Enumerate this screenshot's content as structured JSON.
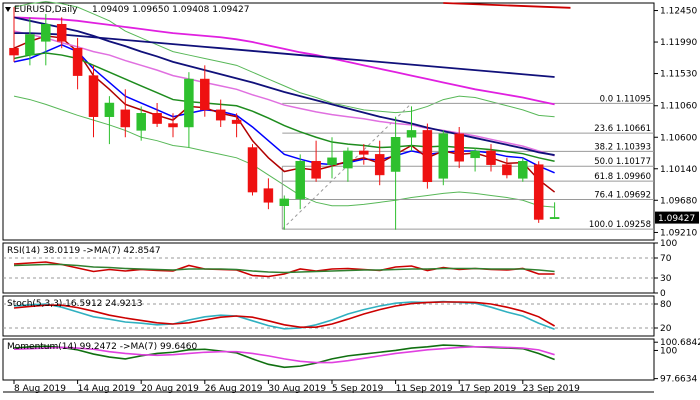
{
  "header": {
    "symbol": "EURUSD,Daily",
    "ohlc": "1.09409 1.09650 1.09408 1.09427"
  },
  "colors": {
    "bull": "#2ec02e",
    "bear": "#ee1111",
    "ma_fast": "#0000ff",
    "ma_red": "#b00000",
    "ma_green": "#1e8c1e",
    "ma_violet": "#e070e0",
    "ma_magenta": "#e020e0",
    "ma_navy": "#10107a",
    "ma_top": "#cc0000",
    "env": "#58b858",
    "fib": "#9a9a9a",
    "rsi": "#cc0000",
    "rsi_ma": "#308030",
    "stoch_k": "#30b0c0",
    "stoch_d": "#cc0000",
    "mom": "#107010",
    "mom_ma": "#e040e0",
    "price_box": "#000000"
  },
  "chart_data": [
    {
      "type": "candlestick",
      "symbol": "EURUSD,Daily",
      "ylim": [
        1.091,
        1.1256
      ],
      "y_ticks": [
        "1.12450",
        "1.11990",
        "1.11530",
        "1.11060",
        "1.10600",
        "1.10140",
        "1.09680",
        "1.09210"
      ],
      "current_price": "1.09427",
      "x_labels": [
        "8 Aug 2019",
        "14 Aug 2019",
        "20 Aug 2019",
        "26 Aug 2019",
        "30 Aug 2019",
        "5 Sep 2019",
        "11 Sep 2019",
        "17 Sep 2019",
        "23 Sep 2019"
      ],
      "candles": [
        {
          "o": 1.119,
          "h": 1.125,
          "l": 1.117,
          "c": 1.118
        },
        {
          "o": 1.118,
          "h": 1.1235,
          "l": 1.1165,
          "c": 1.121
        },
        {
          "o": 1.12,
          "h": 1.124,
          "l": 1.1165,
          "c": 1.1225
        },
        {
          "o": 1.1225,
          "h": 1.1235,
          "l": 1.119,
          "c": 1.12
        },
        {
          "o": 1.119,
          "h": 1.1205,
          "l": 1.113,
          "c": 1.115
        },
        {
          "o": 1.115,
          "h": 1.1165,
          "l": 1.106,
          "c": 1.109
        },
        {
          "o": 1.109,
          "h": 1.112,
          "l": 1.105,
          "c": 1.111
        },
        {
          "o": 1.11,
          "h": 1.113,
          "l": 1.106,
          "c": 1.1075
        },
        {
          "o": 1.107,
          "h": 1.1105,
          "l": 1.1055,
          "c": 1.1095
        },
        {
          "o": 1.1095,
          "h": 1.111,
          "l": 1.1075,
          "c": 1.108
        },
        {
          "o": 1.108,
          "h": 1.1095,
          "l": 1.106,
          "c": 1.1075
        },
        {
          "o": 1.1075,
          "h": 1.1155,
          "l": 1.1045,
          "c": 1.1145
        },
        {
          "o": 1.1145,
          "h": 1.1165,
          "l": 1.109,
          "c": 1.11
        },
        {
          "o": 1.11,
          "h": 1.1115,
          "l": 1.1075,
          "c": 1.1085
        },
        {
          "o": 1.1085,
          "h": 1.1095,
          "l": 1.106,
          "c": 1.108
        },
        {
          "o": 1.1045,
          "h": 1.105,
          "l": 1.0975,
          "c": 1.098
        },
        {
          "o": 1.0985,
          "h": 1.1,
          "l": 1.0955,
          "c": 1.0965
        },
        {
          "o": 1.096,
          "h": 1.0975,
          "l": 1.0925,
          "c": 1.097
        },
        {
          "o": 1.097,
          "h": 1.1035,
          "l": 1.0955,
          "c": 1.1025
        },
        {
          "o": 1.1025,
          "h": 1.1055,
          "l": 1.0995,
          "c": 1.1
        },
        {
          "o": 1.102,
          "h": 1.106,
          "l": 1.1,
          "c": 1.103
        },
        {
          "o": 1.1015,
          "h": 1.1045,
          "l": 1.0995,
          "c": 1.104
        },
        {
          "o": 1.104,
          "h": 1.105,
          "l": 1.102,
          "c": 1.1035
        },
        {
          "o": 1.1035,
          "h": 1.1055,
          "l": 1.099,
          "c": 1.1005
        },
        {
          "o": 1.101,
          "h": 1.109,
          "l": 1.0925,
          "c": 1.106
        },
        {
          "o": 1.106,
          "h": 1.1105,
          "l": 1.104,
          "c": 1.107
        },
        {
          "o": 1.107,
          "h": 1.108,
          "l": 1.0985,
          "c": 1.0995
        },
        {
          "o": 1.1,
          "h": 1.107,
          "l": 1.099,
          "c": 1.1065
        },
        {
          "o": 1.1065,
          "h": 1.1075,
          "l": 1.1015,
          "c": 1.1025
        },
        {
          "o": 1.103,
          "h": 1.1045,
          "l": 1.101,
          "c": 1.104
        },
        {
          "o": 1.104,
          "h": 1.105,
          "l": 1.101,
          "c": 1.102
        },
        {
          "o": 1.102,
          "h": 1.103,
          "l": 1.1,
          "c": 1.1005
        },
        {
          "o": 1.1,
          "h": 1.103,
          "l": 1.0995,
          "c": 1.1025
        },
        {
          "o": 1.102,
          "h": 1.1025,
          "l": 1.0935,
          "c": 1.094
        },
        {
          "o": 1.0941,
          "h": 1.0965,
          "l": 1.0941,
          "c": 1.0943
        }
      ],
      "fib_levels": [
        {
          "label": "0.0 1.11095",
          "value": 1.11095
        },
        {
          "label": "23.6 1.10661",
          "value": 1.10661
        },
        {
          "label": "38.2 1.10393",
          "value": 1.10393
        },
        {
          "label": "50.0 1.10177",
          "value": 1.10177
        },
        {
          "label": "61.8 1.09960",
          "value": 1.0996
        },
        {
          "label": "76.4 1.09692",
          "value": 1.09692
        },
        {
          "label": "100.0 1.09258",
          "value": 1.09258
        }
      ],
      "moving_averages": [
        {
          "color_key": "ma_fast",
          "values": [
            1.117,
            1.1175,
            1.1185,
            1.1195,
            1.1185,
            1.116,
            1.114,
            1.112,
            1.111,
            1.11,
            1.109,
            1.1095,
            1.11,
            1.1098,
            1.1092,
            1.1075,
            1.1055,
            1.1035,
            1.1028,
            1.1022,
            1.102,
            1.1023,
            1.1028,
            1.1027,
            1.1033,
            1.104,
            1.1035,
            1.1038,
            1.104,
            1.104,
            1.1037,
            1.1032,
            1.103,
            1.1018,
            1.1008
          ]
        },
        {
          "color_key": "ma_red",
          "values": [
            1.119,
            1.12,
            1.1208,
            1.1205,
            1.1185,
            1.115,
            1.113,
            1.1108,
            1.11,
            1.1092,
            1.1085,
            1.1105,
            1.1103,
            1.1095,
            1.109,
            1.1055,
            1.103,
            1.101,
            1.1015,
            1.1012,
            1.1018,
            1.1025,
            1.103,
            1.1022,
            1.1035,
            1.1048,
            1.103,
            1.104,
            1.1035,
            1.1037,
            1.103,
            1.1022,
            1.1023,
            1.0998,
            1.098
          ]
        },
        {
          "color_key": "ma_green",
          "values": [
            1.1175,
            1.118,
            1.1183,
            1.118,
            1.1175,
            1.1165,
            1.1155,
            1.1145,
            1.1135,
            1.1125,
            1.1115,
            1.1112,
            1.111,
            1.1108,
            1.1106,
            1.1098,
            1.1088,
            1.1077,
            1.1068,
            1.106,
            1.1053,
            1.105,
            1.1048,
            1.1045,
            1.1046,
            1.1048,
            1.1046,
            1.1047,
            1.1045,
            1.1044,
            1.1042,
            1.1039,
            1.1036,
            1.103,
            1.1025
          ]
        },
        {
          "color_key": "ma_violet",
          "values": [
            1.1215,
            1.121,
            1.1205,
            1.1198,
            1.1192,
            1.1185,
            1.118,
            1.1172,
            1.1165,
            1.1158,
            1.115,
            1.1145,
            1.114,
            1.1135,
            1.113,
            1.1122,
            1.1115,
            1.1107,
            1.1102,
            1.1097,
            1.1093,
            1.109,
            1.1087,
            1.1083,
            1.108,
            1.1078,
            1.1073,
            1.107,
            1.1066,
            1.1062,
            1.1057,
            1.1052,
            1.1047,
            1.104,
            1.1033
          ]
        },
        {
          "color_key": "ma_magenta",
          "values": [
            1.1235,
            1.1234,
            1.1233,
            1.1232,
            1.123,
            1.1227,
            1.1224,
            1.1221,
            1.1218,
            1.1215,
            1.1212,
            1.121,
            1.1208,
            1.1206,
            1.1203,
            1.1199,
            1.1194,
            1.1189,
            1.1184,
            1.118,
            1.1175,
            1.117,
            1.1165,
            1.116,
            1.1155,
            1.115,
            1.1145,
            1.114,
            1.1135,
            1.113,
            1.1126,
            1.1122,
            1.1118,
            1.1113,
            1.1108
          ]
        },
        {
          "color_key": "ma_navy",
          "values": [
            1.1235,
            1.123,
            1.1225,
            1.122,
            1.1215,
            1.1208,
            1.12,
            1.1193,
            1.1185,
            1.1178,
            1.117,
            1.1164,
            1.1158,
            1.1152,
            1.1146,
            1.114,
            1.1133,
            1.1126,
            1.112,
            1.1114,
            1.1108,
            1.1102,
            1.1096,
            1.109,
            1.1085,
            1.108,
            1.1074,
            1.1069,
            1.1064,
            1.1059,
            1.1054,
            1.1049,
            1.1044,
            1.1038,
            1.1034
          ]
        },
        {
          "color_key": "ma_navy",
          "values": [
            1.1212,
            1.1212,
            1.1211,
            1.121,
            1.1208,
            1.1206,
            1.1204,
            1.1202,
            1.12,
            1.1198,
            1.1196,
            1.1194,
            1.1192,
            1.119,
            1.1188,
            1.1186,
            1.1184,
            1.1182,
            1.118,
            1.1178,
            1.1176,
            1.1174,
            1.1172,
            1.117,
            1.1168,
            1.1166,
            1.1164,
            1.1162,
            1.116,
            1.1158,
            1.1156,
            1.1154,
            1.1152,
            1.115,
            1.1148
          ]
        }
      ],
      "envelope_upper": [
        1.125,
        1.1255,
        1.1258,
        1.1255,
        1.125,
        1.124,
        1.123,
        1.1215,
        1.1205,
        1.1195,
        1.1185,
        1.118,
        1.1175,
        1.117,
        1.1165,
        1.1155,
        1.1145,
        1.1135,
        1.1125,
        1.1118,
        1.111,
        1.1105,
        1.11,
        1.1098,
        1.1096,
        1.1098,
        1.1105,
        1.1115,
        1.112,
        1.1118,
        1.1112,
        1.1106,
        1.11,
        1.1092,
        1.109
      ],
      "envelope_lower": [
        1.112,
        1.1115,
        1.1108,
        1.11,
        1.1092,
        1.1085,
        1.1078,
        1.107,
        1.106,
        1.1055,
        1.1048,
        1.1045,
        1.104,
        1.1035,
        1.103,
        1.102,
        1.1005,
        1.099,
        1.0975,
        1.0965,
        1.096,
        1.096,
        1.0962,
        1.0965,
        1.0968,
        1.0972,
        1.0975,
        1.0978,
        1.098,
        1.0978,
        1.0975,
        1.0972,
        1.0968,
        1.096,
        1.0958
      ],
      "top_ma": {
        "color_key": "ma_top",
        "values": [
          [
            27,
            1.1256
          ],
          [
            35,
            1.1249
          ]
        ]
      }
    },
    {
      "type": "line",
      "label": "RSI(14) 38.0119  ->MA(7) 42.8547",
      "ylim": [
        0,
        100
      ],
      "y_ticks": [
        "100",
        "70",
        "30",
        "0"
      ],
      "levels": [
        70,
        30
      ],
      "series": [
        {
          "color_key": "rsi",
          "values": [
            58,
            60,
            62,
            57,
            50,
            43,
            47,
            44,
            47,
            45,
            44,
            55,
            48,
            47,
            46,
            35,
            33,
            38,
            48,
            44,
            48,
            49,
            47,
            45,
            52,
            54,
            45,
            51,
            47,
            49,
            47,
            46,
            49,
            38,
            38
          ]
        },
        {
          "color_key": "rsi_ma",
          "values": [
            55,
            56,
            57,
            57,
            55,
            52,
            51,
            49,
            48,
            47,
            46,
            48,
            48,
            48,
            47,
            44,
            42,
            41,
            42,
            43,
            44,
            45,
            46,
            46,
            47,
            48,
            48,
            49,
            49,
            49,
            48,
            48,
            48,
            46,
            43
          ]
        }
      ]
    },
    {
      "type": "line",
      "label": "Stoch(5,3,3) 16.5912 24.9213",
      "ylim": [
        0,
        100
      ],
      "y_ticks": [
        "80",
        "20"
      ],
      "levels": [
        80,
        20
      ],
      "series": [
        {
          "color_key": "stoch_k",
          "values": [
            75,
            78,
            80,
            72,
            60,
            48,
            42,
            35,
            32,
            28,
            30,
            40,
            48,
            52,
            50,
            38,
            26,
            18,
            20,
            28,
            40,
            55,
            66,
            75,
            82,
            85,
            84,
            86,
            84,
            82,
            72,
            60,
            50,
            32,
            17
          ]
        },
        {
          "color_key": "stoch_d",
          "values": [
            70,
            74,
            77,
            77,
            71,
            62,
            52,
            45,
            39,
            33,
            30,
            33,
            40,
            47,
            50,
            47,
            38,
            28,
            22,
            22,
            30,
            42,
            55,
            66,
            75,
            81,
            84,
            85,
            85,
            84,
            80,
            72,
            62,
            48,
            25
          ]
        }
      ]
    },
    {
      "type": "line",
      "label": "Momentum(14) 99.2472  ->MA(7) 99.6460",
      "ylim": [
        97.55,
        100.95
      ],
      "y_ticks": [
        "100.6842",
        "100",
        "97.6634"
      ],
      "series": [
        {
          "color_key": "mom",
          "values": [
            100.2,
            100.3,
            100.35,
            100.25,
            100.05,
            99.7,
            99.45,
            99.3,
            99.55,
            99.75,
            99.85,
            100.05,
            100.1,
            99.95,
            99.8,
            99.3,
            98.85,
            98.6,
            98.7,
            98.95,
            99.3,
            99.55,
            99.7,
            99.85,
            100.0,
            100.2,
            100.3,
            100.45,
            100.4,
            100.3,
            100.25,
            100.2,
            100.15,
            99.75,
            99.25
          ]
        },
        {
          "color_key": "mom_ma",
          "values": [
            100.1,
            100.15,
            100.2,
            100.25,
            100.2,
            100.1,
            99.9,
            99.75,
            99.65,
            99.6,
            99.65,
            99.75,
            99.85,
            99.9,
            99.9,
            99.75,
            99.55,
            99.3,
            99.1,
            99.0,
            99.0,
            99.15,
            99.35,
            99.55,
            99.75,
            99.9,
            100.05,
            100.15,
            100.25,
            100.3,
            100.3,
            100.25,
            100.2,
            100.05,
            99.65
          ]
        }
      ]
    }
  ]
}
